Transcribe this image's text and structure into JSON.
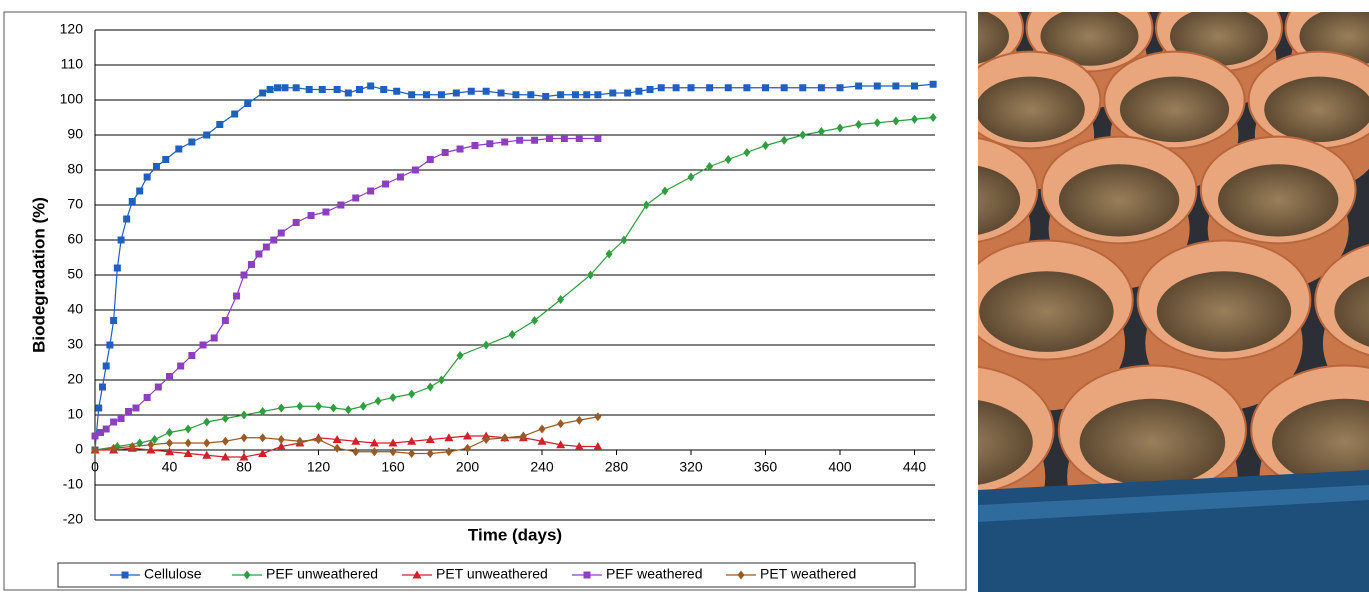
{
  "chart_data": {
    "type": "line",
    "xlabel": "Time (days)",
    "ylabel": "Biodegradation (%)",
    "xlim": [
      0,
      451
    ],
    "xticks": [
      0,
      40,
      80,
      120,
      160,
      200,
      240,
      280,
      320,
      360,
      400,
      440
    ],
    "ylim": [
      -20,
      120
    ],
    "yticks": [
      -20,
      -10,
      0,
      10,
      20,
      30,
      40,
      50,
      60,
      70,
      80,
      90,
      100,
      110,
      120
    ],
    "grid": true,
    "legend": "bottom",
    "series": [
      {
        "name": "Cellulose",
        "color": "#1f5fbf",
        "marker": "square",
        "x": [
          0,
          2,
          4,
          6,
          8,
          10,
          12,
          14,
          17,
          20,
          24,
          28,
          33,
          38,
          45,
          52,
          60,
          67,
          75,
          82,
          90,
          94,
          98,
          102,
          108,
          115,
          122,
          130,
          136,
          142,
          148,
          155,
          162,
          170,
          178,
          186,
          194,
          202,
          210,
          218,
          226,
          234,
          242,
          250,
          258,
          264,
          270,
          278,
          286,
          292,
          298,
          304,
          312,
          320,
          330,
          340,
          350,
          360,
          370,
          380,
          390,
          400,
          410,
          420,
          430,
          440,
          450
        ],
        "values": [
          0,
          12,
          18,
          24,
          30,
          37,
          52,
          60,
          66,
          71,
          74,
          78,
          81,
          83,
          86,
          88,
          90,
          93,
          96,
          99,
          102,
          103,
          103.5,
          103.5,
          103.5,
          103,
          103,
          103,
          102,
          103,
          104,
          103,
          102.5,
          101.5,
          101.5,
          101.5,
          102,
          102.5,
          102.5,
          102,
          101.5,
          101.5,
          101,
          101.5,
          101.5,
          101.5,
          101.5,
          102,
          102,
          102.5,
          103,
          103.5,
          103.5,
          103.5,
          103.5,
          103.5,
          103.5,
          103.5,
          103.5,
          103.5,
          103.5,
          103.5,
          104,
          104,
          104,
          104,
          104.5
        ]
      },
      {
        "name": "PEF unweathered",
        "color": "#2e9e3f",
        "marker": "diamond",
        "x": [
          0,
          12,
          24,
          32,
          40,
          50,
          60,
          70,
          80,
          90,
          100,
          110,
          120,
          128,
          136,
          144,
          152,
          160,
          170,
          180,
          186,
          196,
          210,
          224,
          236,
          250,
          266,
          276,
          284,
          296,
          306,
          320,
          330,
          340,
          350,
          360,
          370,
          380,
          390,
          400,
          410,
          420,
          430,
          440,
          450
        ],
        "values": [
          0,
          1,
          2,
          3,
          5,
          6,
          8,
          9,
          10,
          11,
          12,
          12.5,
          12.5,
          12,
          11.5,
          12.5,
          14,
          15,
          16,
          18,
          20,
          27,
          30,
          33,
          37,
          43,
          50,
          56,
          60,
          70,
          74,
          78,
          81,
          83,
          85,
          87,
          88.5,
          90,
          91,
          92,
          93,
          93.5,
          94,
          94.5,
          95
        ]
      },
      {
        "name": "PET unweathered",
        "color": "#d0202a",
        "marker": "triangle",
        "x": [
          0,
          10,
          20,
          30,
          40,
          50,
          60,
          70,
          80,
          90,
          100,
          110,
          120,
          130,
          140,
          150,
          160,
          170,
          180,
          190,
          200,
          210,
          220,
          230,
          240,
          250,
          260,
          270
        ],
        "values": [
          0,
          0,
          0.5,
          0,
          -0.5,
          -1,
          -1.5,
          -2,
          -2,
          -1,
          1,
          2,
          3.5,
          3,
          2.5,
          2,
          2,
          2.5,
          3,
          3.5,
          4,
          4,
          3.5,
          3.5,
          2.5,
          1.5,
          1,
          1
        ]
      },
      {
        "name": "PEF weathered",
        "color": "#8e3fbf",
        "marker": "square",
        "x": [
          0,
          3,
          6,
          10,
          14,
          18,
          22,
          28,
          34,
          40,
          46,
          52,
          58,
          64,
          70,
          76,
          80,
          84,
          88,
          92,
          96,
          100,
          108,
          116,
          124,
          132,
          140,
          148,
          156,
          164,
          172,
          180,
          188,
          196,
          204,
          212,
          220,
          228,
          236,
          244,
          252,
          260,
          270
        ],
        "values": [
          4,
          5,
          6,
          8,
          9,
          11,
          12,
          15,
          18,
          21,
          24,
          27,
          30,
          32,
          37,
          44,
          50,
          53,
          56,
          58,
          60,
          62,
          65,
          67,
          68,
          70,
          72,
          74,
          76,
          78,
          80,
          83,
          85,
          86,
          87,
          87.5,
          88,
          88.5,
          88.5,
          89,
          89,
          89,
          89
        ]
      },
      {
        "name": "PET weathered",
        "color": "#9a5a26",
        "marker": "diamond",
        "x": [
          0,
          10,
          20,
          30,
          40,
          50,
          60,
          70,
          80,
          90,
          100,
          110,
          120,
          130,
          140,
          150,
          160,
          170,
          180,
          190,
          200,
          210,
          220,
          230,
          240,
          250,
          260,
          270
        ],
        "values": [
          0,
          0.5,
          1,
          1.5,
          2,
          2,
          2,
          2.5,
          3.5,
          3.5,
          3,
          2.5,
          3,
          0.5,
          -0.5,
          -0.5,
          -0.5,
          -1,
          -1,
          -0.5,
          0.5,
          3,
          3.5,
          4,
          6,
          7.5,
          8.5,
          9.5
        ]
      }
    ]
  }
}
